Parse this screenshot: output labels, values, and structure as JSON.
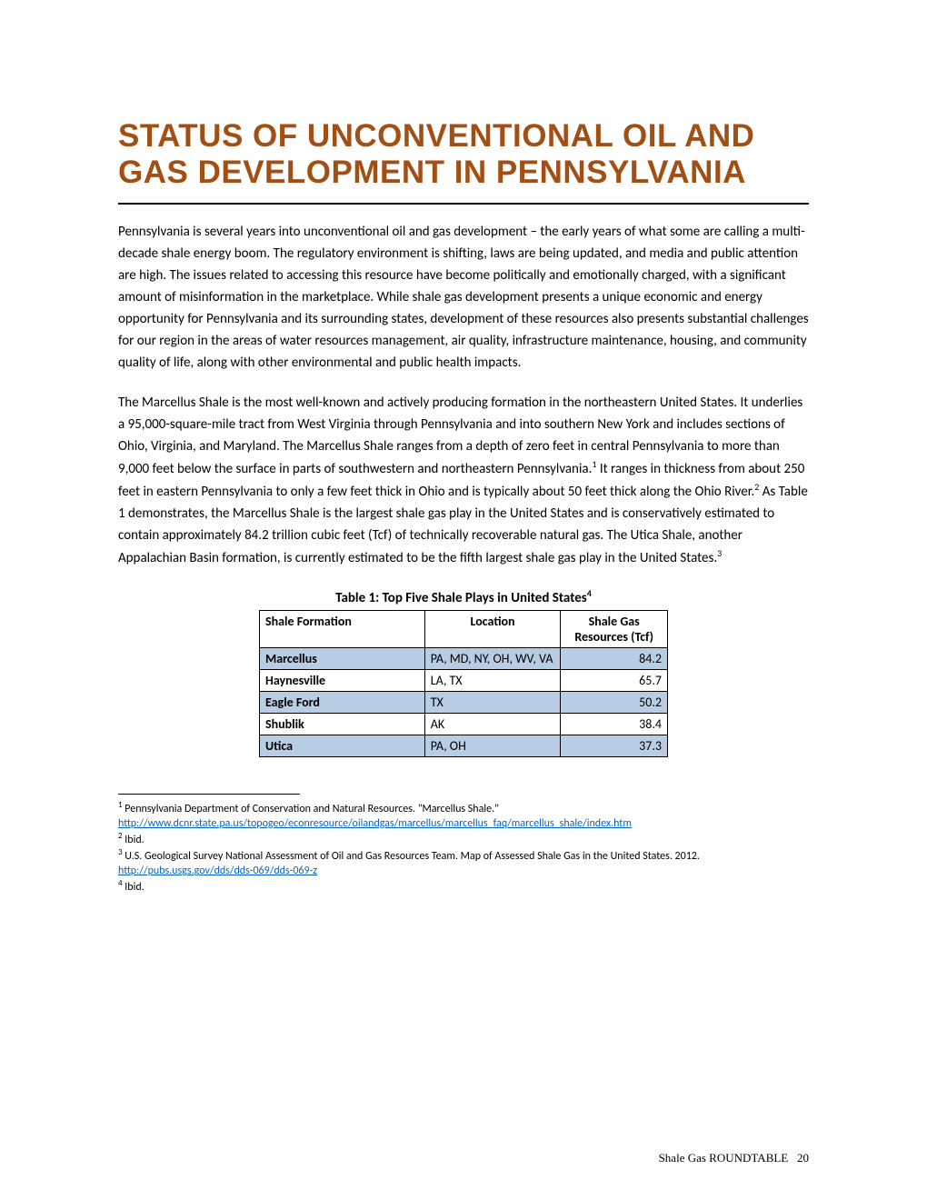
{
  "title": "STATUS OF UNCONVENTIONAL OIL AND GAS DEVELOPMENT IN PENNSYLVANIA",
  "paragraphs": {
    "p1": "Pennsylvania is several years into unconventional oil and gas development – the early years of what some are calling a multi-decade shale energy boom. The regulatory environment is shifting, laws are being updated, and media and public attention are high. The issues related to accessing this resource have become politically and emotionally charged, with a significant amount of misinformation in the marketplace. While shale gas development presents a unique economic and energy opportunity for Pennsylvania and its surrounding states, development of these resources also presents substantial challenges for our region in the areas of water resources management, air quality, infrastructure maintenance, housing, and community quality of life, along with other environmental and public health impacts.",
    "p2a": "The Marcellus Shale is the most well-known and actively producing formation in the northeastern United States. It underlies a 95,000-square-mile tract from West Virginia through Pennsylvania and into southern New York and includes sections of Ohio, Virginia, and Maryland. The Marcellus Shale ranges from a depth of zero feet in central Pennsylvania to more than 9,000 feet below the surface in parts of southwestern and northeastern Pennsylvania.",
    "p2b": " It ranges in thickness from about 250 feet in eastern Pennsylvania to only a few feet thick in Ohio and is typically about 50 feet thick along the Ohio River.",
    "p2c": " As Table 1 demonstrates, the Marcellus Shale is the largest shale gas play in the United States and is conservatively estimated to contain approximately 84.2 trillion cubic feet (Tcf) of technically recoverable natural gas. The Utica Shale, another Appalachian Basin formation, is currently estimated to be the fifth largest shale gas play in the United States."
  },
  "superscripts": {
    "s1": "1",
    "s2": "2",
    "s3": "3",
    "s4": "4"
  },
  "table": {
    "caption": "Table 1: Top Five Shale Plays in United States",
    "headers": {
      "formation": "Shale Formation",
      "location": "Location",
      "resources": "Shale Gas Resources (Tcf)"
    },
    "rows": [
      {
        "formation": "Marcellus",
        "location": "PA, MD, NY, OH, WV, VA",
        "resources": "84.2",
        "highlight": true
      },
      {
        "formation": "Haynesville",
        "location": "LA, TX",
        "resources": "65.7",
        "highlight": false
      },
      {
        "formation": "Eagle Ford",
        "location": "TX",
        "resources": "50.2",
        "highlight": true
      },
      {
        "formation": "Shublik",
        "location": "AK",
        "resources": "38.4",
        "highlight": false
      },
      {
        "formation": "Utica",
        "location": "PA, OH",
        "resources": "37.3",
        "highlight": true
      }
    ]
  },
  "footnotes": {
    "f1_text": " Pennsylvania Department of Conservation and Natural Resources. \"Marcellus Shale.\" ",
    "f1_link": "http://www.dcnr.state.pa.us/topogeo/econresource/oilandgas/marcellus/marcellus_faq/marcellus_shale/index.htm",
    "f2_text": " Ibid.",
    "f3_text": " U.S. Geological Survey National Assessment of Oil and Gas Resources Team. Map of Assessed Shale Gas in the United States. 2012. ",
    "f3_link": "http://pubs.usgs.gov/dds/dds-069/dds-069-z",
    "f4_text": " Ibid."
  },
  "footer": {
    "label": "Shale Gas ROUNDTABLE",
    "page": "20"
  },
  "colors": {
    "title": "#a24f14",
    "highlight": "#b8cce4",
    "link": "#0563c1"
  }
}
